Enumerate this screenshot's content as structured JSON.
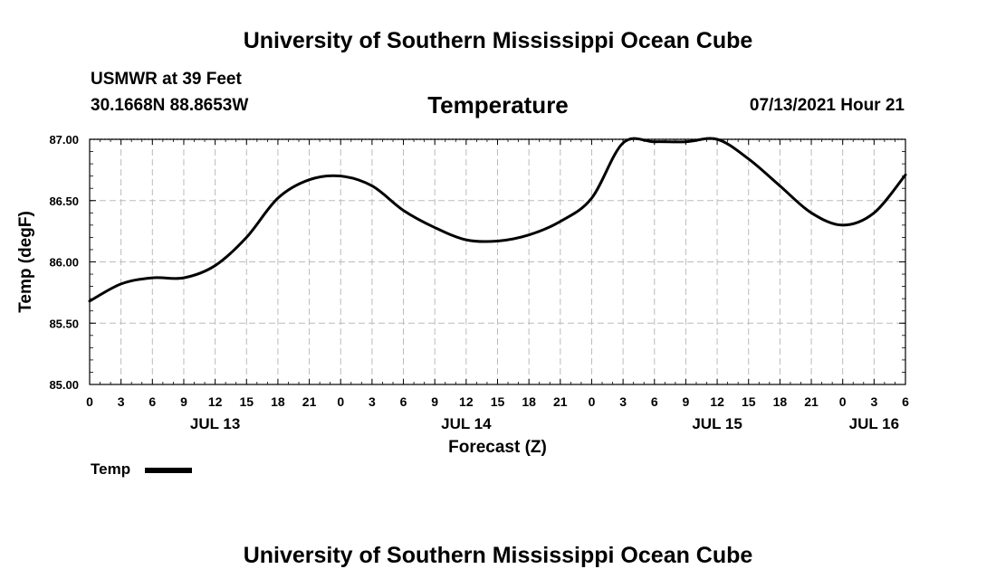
{
  "header": {
    "title": "University of Southern Mississippi Ocean Cube",
    "station": "USMWR at 39 Feet",
    "coords": "30.1668N  88.8653W",
    "plot_title": "Temperature",
    "date": "07/13/2021 Hour 21"
  },
  "footer": {
    "title": "University of Southern Mississippi Ocean Cube"
  },
  "legend": {
    "label": "Temp"
  },
  "chart_data": {
    "type": "line",
    "title": "Temperature",
    "xlabel": "Forecast (Z)",
    "ylabel": "Temp (degF)",
    "ylim": [
      85.0,
      87.0
    ],
    "yticks": [
      "85.00",
      "85.50",
      "86.00",
      "86.50",
      "87.00"
    ],
    "xlim": [
      0,
      78
    ],
    "xtick_labels": [
      "0",
      "3",
      "6",
      "9",
      "12",
      "15",
      "18",
      "21",
      "0",
      "3",
      "6",
      "9",
      "12",
      "15",
      "18",
      "21",
      "0",
      "3",
      "6",
      "9",
      "12",
      "15",
      "18",
      "21",
      "0",
      "3",
      "6"
    ],
    "date_labels": [
      {
        "label": "JUL 13",
        "hour": 12
      },
      {
        "label": "JUL 14",
        "hour": 36
      },
      {
        "label": "JUL 15",
        "hour": 60
      },
      {
        "label": "JUL 16",
        "hour": 75
      }
    ],
    "grid": true,
    "series": [
      {
        "name": "Temp",
        "color": "#000000",
        "x": [
          0,
          3,
          6,
          9,
          12,
          15,
          18,
          21,
          24,
          27,
          30,
          33,
          36,
          39,
          42,
          45,
          48,
          51,
          54,
          57,
          60,
          63,
          66,
          69,
          72,
          75,
          78
        ],
        "values": [
          85.68,
          85.82,
          85.87,
          85.87,
          85.97,
          86.2,
          86.52,
          86.67,
          86.7,
          86.62,
          86.42,
          86.28,
          86.18,
          86.17,
          86.22,
          86.33,
          86.52,
          86.97,
          86.98,
          86.98,
          87.0,
          86.84,
          86.62,
          86.4,
          86.3,
          86.4,
          86.71
        ]
      }
    ]
  }
}
